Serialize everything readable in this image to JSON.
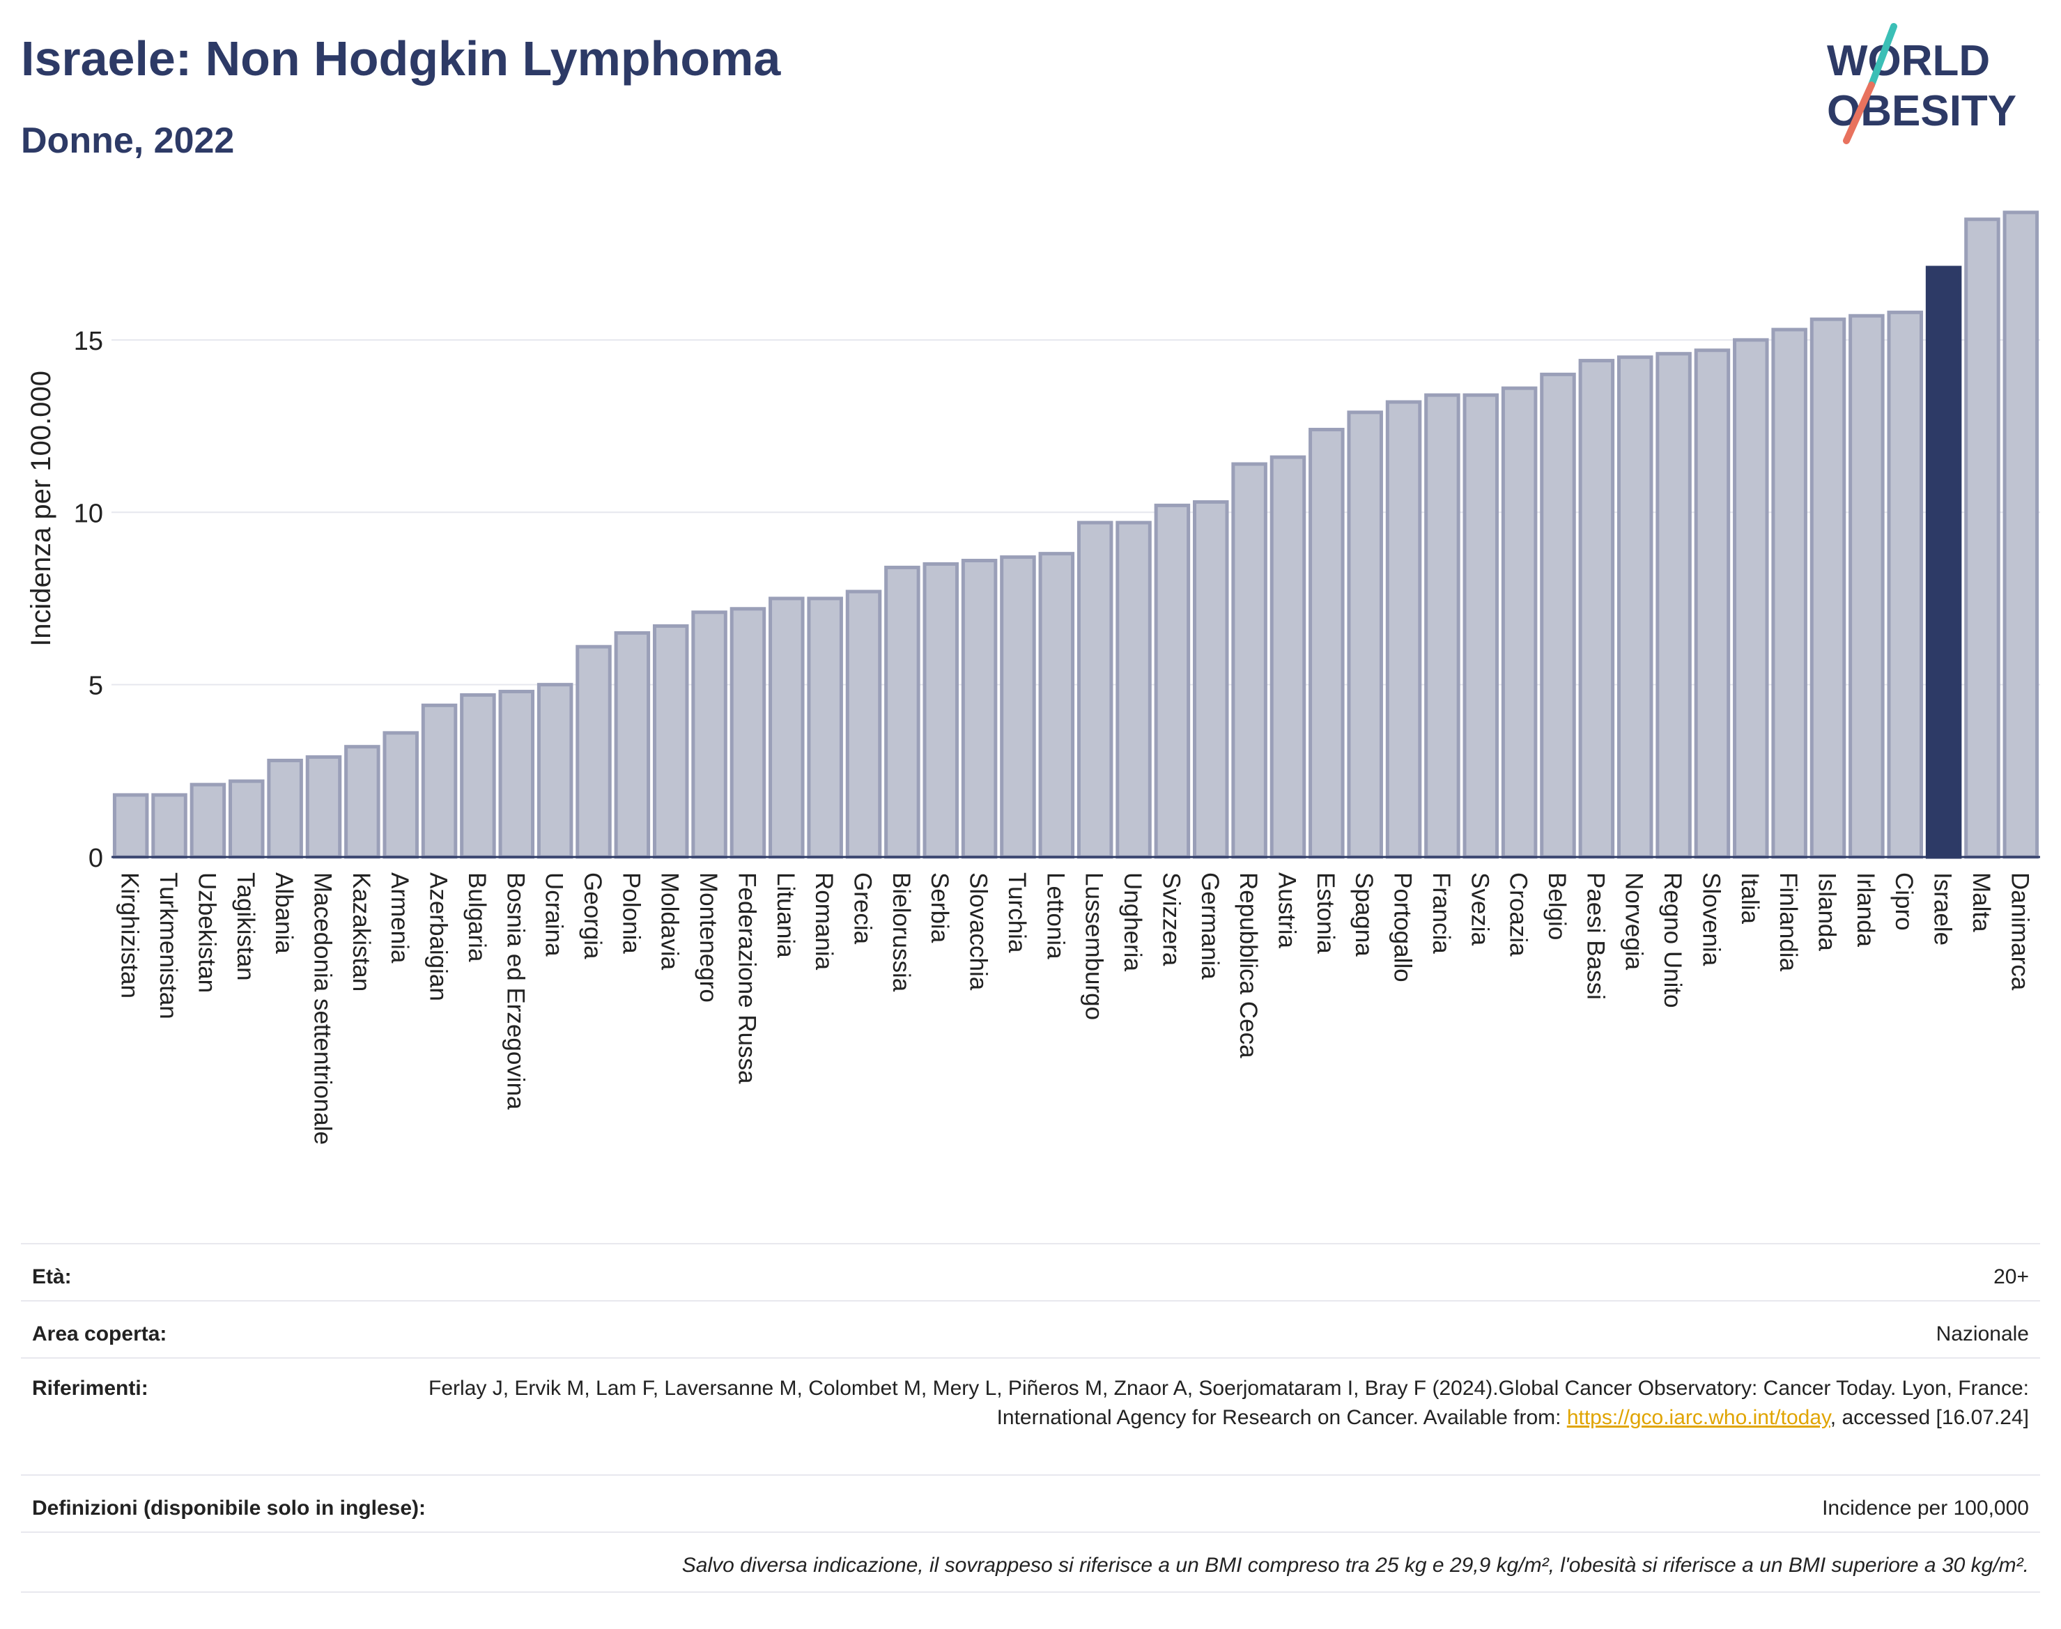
{
  "header": {
    "title": "Israele: Non Hodgkin Lymphoma",
    "subtitle": "Donne, 2022"
  },
  "logo": {
    "line1": "WORLD",
    "line2": "OBESITY"
  },
  "colors": {
    "bar": "#bfc3d1",
    "bar_stroke": "#9a9fb8",
    "highlight": "#2d3a66",
    "grid": "#e6e7ee",
    "axis": "#2d3a66"
  },
  "chart_data": {
    "type": "bar",
    "ylabel": "Incidenza per 100.000",
    "ylim": [
      0,
      19
    ],
    "yticks": [
      0,
      5,
      10,
      15
    ],
    "grid": true,
    "highlight": "Israele",
    "categories": [
      "Kirghizistan",
      "Turkmenistan",
      "Uzbekistan",
      "Tagikistan",
      "Albania",
      "Macedonia settentrionale",
      "Kazakistan",
      "Armenia",
      "Azerbaigian",
      "Bulgaria",
      "Bosnia ed Erzegovina",
      "Ucraina",
      "Georgia",
      "Polonia",
      "Moldavia",
      "Montenegro",
      "Federazione Russa",
      "Lituania",
      "Romania",
      "Grecia",
      "Bielorussia",
      "Serbia",
      "Slovacchia",
      "Turchia",
      "Lettonia",
      "Lussemburgo",
      "Ungheria",
      "Svizzera",
      "Germania",
      "Repubblica Ceca",
      "Austria",
      "Estonia",
      "Spagna",
      "Portogallo",
      "Francia",
      "Svezia",
      "Croazia",
      "Belgio",
      "Paesi Bassi",
      "Norvegia",
      "Regno Unito",
      "Slovenia",
      "Italia",
      "Finlandia",
      "Islanda",
      "Irlanda",
      "Cipro",
      "Israele",
      "Malta",
      "Danimarca"
    ],
    "values": [
      1.8,
      1.8,
      2.1,
      2.2,
      2.8,
      2.9,
      3.2,
      3.6,
      4.4,
      4.7,
      4.8,
      5.0,
      6.1,
      6.5,
      6.7,
      7.1,
      7.2,
      7.5,
      7.5,
      7.7,
      8.4,
      8.5,
      8.6,
      8.7,
      8.8,
      9.7,
      9.7,
      10.2,
      10.3,
      11.4,
      11.6,
      12.4,
      12.9,
      13.2,
      13.4,
      13.4,
      13.6,
      14.0,
      14.4,
      14.5,
      14.6,
      14.7,
      15.0,
      15.3,
      15.6,
      15.7,
      15.8,
      17.1,
      18.5,
      18.7
    ]
  },
  "info": {
    "age_label": "Età:",
    "age_value": "20+",
    "area_label": "Area coperta:",
    "area_value": "Nazionale",
    "ref_label": "Riferimenti:",
    "ref_text_1": "Ferlay J, Ervik M, Lam F, Laversanne M, Colombet M, Mery L, Piñeros M, Znaor A, Soerjomataram I, Bray F (2024).Global Cancer Observatory: Cancer Today. Lyon, France: International Agency for Research on Cancer. Available from: ",
    "ref_link": "https://gco.iarc.who.int/today",
    "ref_text_2": ", accessed [16.07.24]",
    "def_label": "Definizioni (disponibile solo in inglese):",
    "def_value": "Incidence per 100,000",
    "note": "Salvo diversa indicazione, il sovrappeso si riferisce a un BMI compreso tra 25 kg e 29,9 kg/m², l'obesità si riferisce a un BMI superiore a 30 kg/m²."
  }
}
